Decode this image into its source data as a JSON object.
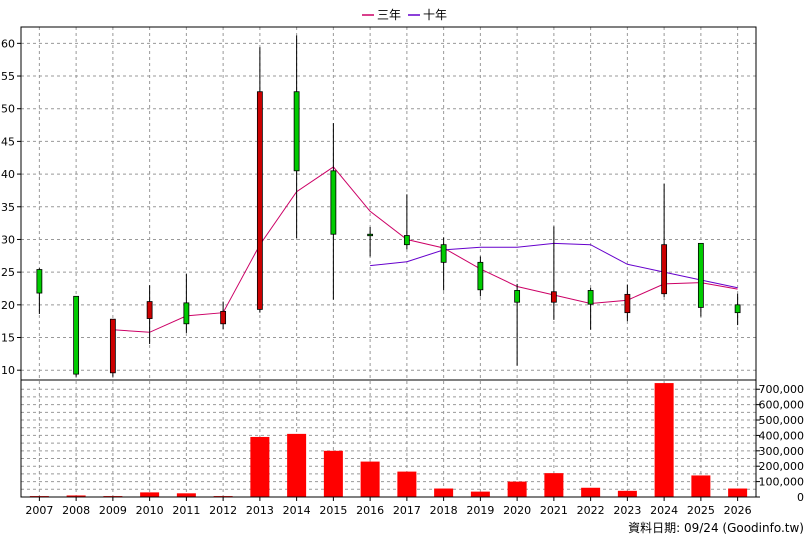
{
  "chart_data": {
    "type": "candlestick",
    "legend": [
      {
        "name": "三年",
        "color": "#cc0066"
      },
      {
        "name": "十年",
        "color": "#6600cc"
      }
    ],
    "legend_placement": "top-center",
    "grid": true,
    "x_categories": [
      "2007",
      "2008",
      "2009",
      "2010",
      "2011",
      "2012",
      "2013",
      "2014",
      "2015",
      "2016",
      "2017",
      "2018",
      "2019",
      "2020",
      "2021",
      "2022",
      "2023",
      "2024",
      "2025",
      "2026"
    ],
    "price_axis": {
      "ticks": [
        10,
        15,
        20,
        25,
        30,
        35,
        40,
        45,
        50,
        55,
        60
      ],
      "range": [
        8.5,
        62.5
      ]
    },
    "volume_axis": {
      "ticks": [
        0,
        100000,
        200000,
        300000,
        400000,
        500000,
        600000,
        700000
      ],
      "tick_labels": [
        "0",
        "100,000",
        "200,000",
        "300,000",
        "400,000",
        "500,000",
        "600,000",
        "700,000"
      ],
      "range": [
        0,
        760000
      ]
    },
    "candles": [
      {
        "year": "2007",
        "open": 21.8,
        "close": 25.4,
        "high": 25.6,
        "low": 18.6
      },
      {
        "year": "2008",
        "open": 9.4,
        "close": 21.3,
        "high": 21.3,
        "low": 9.0
      },
      {
        "year": "2009",
        "open": 17.8,
        "close": 9.6,
        "high": 17.8,
        "low": 9.0
      },
      {
        "year": "2010",
        "open": 20.5,
        "close": 17.9,
        "high": 23.0,
        "low": 14.0
      },
      {
        "year": "2011",
        "open": 17.1,
        "close": 20.3,
        "high": 24.7,
        "low": 15.7
      },
      {
        "year": "2012",
        "open": 19.0,
        "close": 17.1,
        "high": 20.5,
        "low": 16.3
      },
      {
        "year": "2013",
        "open": 52.6,
        "close": 19.3,
        "high": 59.4,
        "low": 18.8
      },
      {
        "year": "2014",
        "open": 40.5,
        "close": 52.6,
        "high": 61.2,
        "low": 30.2
      },
      {
        "year": "2015",
        "open": 30.8,
        "close": 40.5,
        "high": 47.8,
        "low": 20.8
      },
      {
        "year": "2016",
        "open": 30.6,
        "close": 30.8,
        "high": 31.9,
        "low": 27.4
      },
      {
        "year": "2017",
        "open": 29.2,
        "close": 30.6,
        "high": 36.9,
        "low": 28.5
      },
      {
        "year": "2018",
        "open": 26.5,
        "close": 29.2,
        "high": 30.3,
        "low": 22.2
      },
      {
        "year": "2019",
        "open": 22.3,
        "close": 26.5,
        "high": 27.4,
        "low": 21.3
      },
      {
        "year": "2020",
        "open": 20.4,
        "close": 22.2,
        "high": 23.2,
        "low": 10.7
      },
      {
        "year": "2021",
        "open": 22.0,
        "close": 20.4,
        "high": 32.0,
        "low": 17.7
      },
      {
        "year": "2022",
        "open": 20.1,
        "close": 22.2,
        "high": 22.6,
        "low": 16.2
      },
      {
        "year": "2023",
        "open": 21.6,
        "close": 18.8,
        "high": 23.1,
        "low": 17.5
      },
      {
        "year": "2024",
        "open": 29.2,
        "close": 21.7,
        "high": 38.5,
        "low": 21.2
      },
      {
        "year": "2025",
        "open": 19.6,
        "close": 29.4,
        "high": 29.4,
        "low": 18.2
      },
      {
        "year": "2026",
        "open": 18.8,
        "close": 20.0,
        "high": 21.7,
        "low": 16.9
      }
    ],
    "volume": [
      6000,
      10000,
      6000,
      30000,
      24000,
      6000,
      390000,
      410000,
      300000,
      230000,
      165000,
      55000,
      35000,
      100000,
      155000,
      60000,
      40000,
      740000,
      140000,
      55000
    ],
    "series": [
      {
        "name": "三年",
        "x_start": "2009",
        "values": [
          16.2,
          15.8,
          18.3,
          18.8,
          29.2,
          37.3,
          41.1,
          34.3,
          30.0,
          28.7,
          25.5,
          22.8,
          21.5,
          20.2,
          20.7,
          23.2,
          23.4,
          22.4
        ]
      },
      {
        "name": "十年",
        "x_start": "2016",
        "values": [
          26.0,
          26.6,
          28.4,
          28.8,
          28.8,
          29.4,
          29.2,
          26.2,
          25.0,
          23.8,
          22.6
        ]
      }
    ],
    "colors": {
      "up": "#00cc00",
      "down": "#cc0000",
      "volume": "#ff0000",
      "wick": "#000000",
      "grid": "#999999"
    },
    "footer": "資料日期: 09/24  (Goodinfo.tw)"
  }
}
